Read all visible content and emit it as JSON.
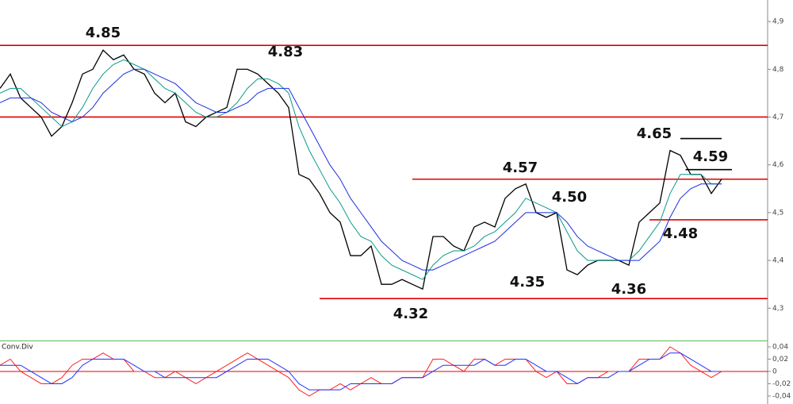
{
  "chart_data": [
    {
      "type": "line",
      "ylim": [
        4.234,
        4.945
      ],
      "yticks": [
        {
          "value": 4.3,
          "label": "4,3"
        },
        {
          "value": 4.4,
          "label": "4,4"
        },
        {
          "value": 4.5,
          "label": "4,5"
        },
        {
          "value": 4.6,
          "label": "4,6"
        },
        {
          "value": 4.7,
          "label": "4,7"
        },
        {
          "value": 4.8,
          "label": "4,8"
        },
        {
          "value": 4.9,
          "label": "4,9"
        }
      ],
      "series": [
        {
          "color": "#000000",
          "values": [
            4.76,
            4.79,
            4.74,
            4.72,
            4.7,
            4.66,
            4.68,
            4.73,
            4.79,
            4.8,
            4.84,
            4.82,
            4.83,
            4.8,
            4.79,
            4.75,
            4.73,
            4.75,
            4.69,
            4.68,
            4.7,
            4.71,
            4.72,
            4.8,
            4.8,
            4.79,
            4.77,
            4.75,
            4.72,
            4.58,
            4.57,
            4.54,
            4.5,
            4.48,
            4.41,
            4.41,
            4.43,
            4.35,
            4.35,
            4.36,
            4.35,
            4.34,
            4.45,
            4.45,
            4.43,
            4.42,
            4.47,
            4.48,
            4.47,
            4.53,
            4.55,
            4.56,
            4.5,
            4.49,
            4.5,
            4.38,
            4.37,
            4.39,
            4.4,
            4.4,
            4.4,
            4.39,
            4.48,
            4.5,
            4.52,
            4.63,
            4.62,
            4.58,
            4.58,
            4.54,
            4.57
          ]
        },
        {
          "color": "#0a9a8a",
          "values": [
            4.75,
            4.76,
            4.76,
            4.74,
            4.72,
            4.7,
            4.68,
            4.69,
            4.72,
            4.76,
            4.79,
            4.81,
            4.82,
            4.81,
            4.8,
            4.78,
            4.76,
            4.75,
            4.73,
            4.71,
            4.7,
            4.7,
            4.71,
            4.73,
            4.76,
            4.78,
            4.78,
            4.77,
            4.75,
            4.68,
            4.63,
            4.59,
            4.55,
            4.52,
            4.48,
            4.45,
            4.44,
            4.41,
            4.39,
            4.38,
            4.37,
            4.36,
            4.39,
            4.41,
            4.42,
            4.42,
            4.43,
            4.45,
            4.46,
            4.48,
            4.5,
            4.53,
            4.52,
            4.51,
            4.5,
            4.46,
            4.42,
            4.4,
            4.4,
            4.4,
            4.4,
            4.4,
            4.42,
            4.45,
            4.48,
            4.54,
            4.58,
            4.58,
            4.58,
            4.56,
            4.56
          ]
        },
        {
          "color": "#1a2ee0",
          "values": [
            4.73,
            4.74,
            4.74,
            4.74,
            4.73,
            4.71,
            4.7,
            4.69,
            4.7,
            4.72,
            4.75,
            4.77,
            4.79,
            4.8,
            4.8,
            4.79,
            4.78,
            4.77,
            4.75,
            4.73,
            4.72,
            4.71,
            4.71,
            4.72,
            4.73,
            4.75,
            4.76,
            4.76,
            4.76,
            4.72,
            4.68,
            4.64,
            4.6,
            4.57,
            4.53,
            4.5,
            4.47,
            4.44,
            4.42,
            4.4,
            4.39,
            4.38,
            4.38,
            4.39,
            4.4,
            4.41,
            4.42,
            4.43,
            4.44,
            4.46,
            4.48,
            4.5,
            4.5,
            4.5,
            4.5,
            4.48,
            4.45,
            4.43,
            4.42,
            4.41,
            4.4,
            4.4,
            4.4,
            4.42,
            4.44,
            4.49,
            4.53,
            4.55,
            4.56,
            4.56,
            4.56
          ]
        }
      ],
      "levels": [
        {
          "value": 4.85,
          "color": "#e00000",
          "start": 0
        },
        {
          "value": 4.7,
          "color": "#e00000",
          "start": 0
        },
        {
          "value": 4.57,
          "color": "#e00000",
          "start": 40
        },
        {
          "value": 4.485,
          "color": "#e00000",
          "start": 63
        },
        {
          "value": 4.32,
          "color": "#e00000",
          "start": 31
        },
        {
          "value": 4.655,
          "color": "#000000",
          "start": 66,
          "end": 70
        },
        {
          "value": 4.59,
          "color": "#000000",
          "start": 66.5,
          "end": 71
        }
      ],
      "annotations": [
        "4.85",
        "4.83",
        "4.57",
        "4.50",
        "4.35",
        "4.32",
        "4.36",
        "4.48",
        "4.65",
        "4.59"
      ]
    },
    {
      "type": "line",
      "title": "Conv.Div",
      "ylim": [
        -0.053,
        0.049
      ],
      "yticks": [
        {
          "value": -0.04,
          "label": "-0,04"
        },
        {
          "value": -0.02,
          "label": "-0,02"
        },
        0,
        {
          "value": 0.02,
          "label": "0,02"
        },
        {
          "value": 0.04,
          "label": "0,04"
        }
      ],
      "zero_line_color": "#e00000",
      "series": [
        {
          "color": "#ff2020",
          "values": [
            0.01,
            0.02,
            0.0,
            -0.01,
            -0.02,
            -0.02,
            -0.01,
            0.01,
            0.02,
            0.02,
            0.03,
            0.02,
            0.02,
            0.0,
            0.0,
            -0.01,
            -0.01,
            0.0,
            -0.01,
            -0.02,
            -0.01,
            0.0,
            0.01,
            0.02,
            0.03,
            0.02,
            0.01,
            0.0,
            -0.01,
            -0.03,
            -0.04,
            -0.03,
            -0.03,
            -0.02,
            -0.03,
            -0.02,
            -0.01,
            -0.02,
            -0.02,
            -0.01,
            -0.01,
            -0.01,
            0.02,
            0.02,
            0.01,
            0.0,
            0.02,
            0.02,
            0.01,
            0.02,
            0.02,
            0.02,
            0.0,
            -0.01,
            0.0,
            -0.02,
            -0.02,
            -0.01,
            -0.01,
            0.0,
            0.0,
            0.0,
            0.02,
            0.02,
            0.02,
            0.04,
            0.03,
            0.01,
            0.0,
            -0.01,
            0.0
          ]
        },
        {
          "color": "#2030ff",
          "values": [
            0.01,
            0.01,
            0.01,
            0.0,
            -0.01,
            -0.02,
            -0.02,
            -0.01,
            0.01,
            0.02,
            0.02,
            0.02,
            0.02,
            0.01,
            0.0,
            0.0,
            -0.01,
            -0.01,
            -0.01,
            -0.01,
            -0.01,
            -0.01,
            0.0,
            0.01,
            0.02,
            0.02,
            0.02,
            0.01,
            0.0,
            -0.02,
            -0.03,
            -0.03,
            -0.03,
            -0.03,
            -0.02,
            -0.02,
            -0.02,
            -0.02,
            -0.02,
            -0.01,
            -0.01,
            -0.01,
            0.0,
            0.01,
            0.01,
            0.01,
            0.01,
            0.02,
            0.01,
            0.01,
            0.02,
            0.02,
            0.01,
            0.0,
            0.0,
            -0.01,
            -0.02,
            -0.01,
            -0.01,
            -0.01,
            0.0,
            0.0,
            0.01,
            0.02,
            0.02,
            0.03,
            0.03,
            0.02,
            0.01,
            0.0,
            0.0
          ]
        }
      ]
    }
  ]
}
